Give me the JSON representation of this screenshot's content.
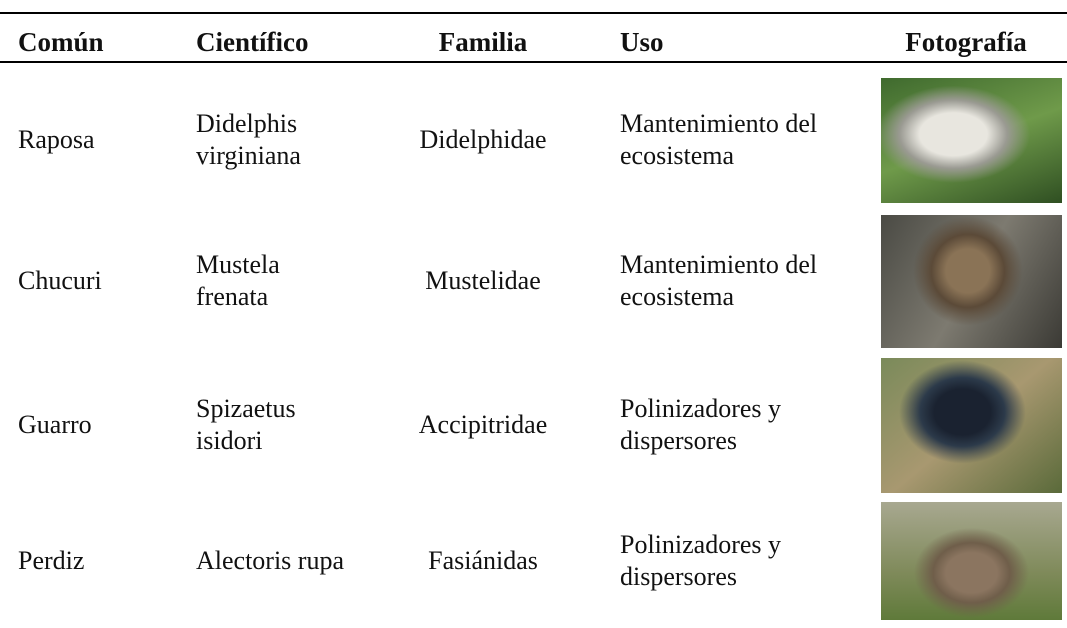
{
  "table": {
    "header": [
      "Común",
      "Científico",
      "Familia",
      "Uso",
      "Fotografía"
    ],
    "rows": [
      [
        "Raposa",
        "Didelphis virginiana",
        "Didelphidae",
        "Mantenimiento del ecosistema"
      ],
      [
        "Chucuri",
        "Mustela frenata",
        "Mustelidae",
        "Mantenimiento del ecosistema"
      ],
      [
        "Guarro",
        "Spizaetus isidori",
        "Accipitridae",
        "Polinizadores y dispersores"
      ],
      [
        "Perdiz",
        "Alectoris rupa",
        "Fasiánidas",
        "Polinizadores y dispersores"
      ]
    ]
  }
}
